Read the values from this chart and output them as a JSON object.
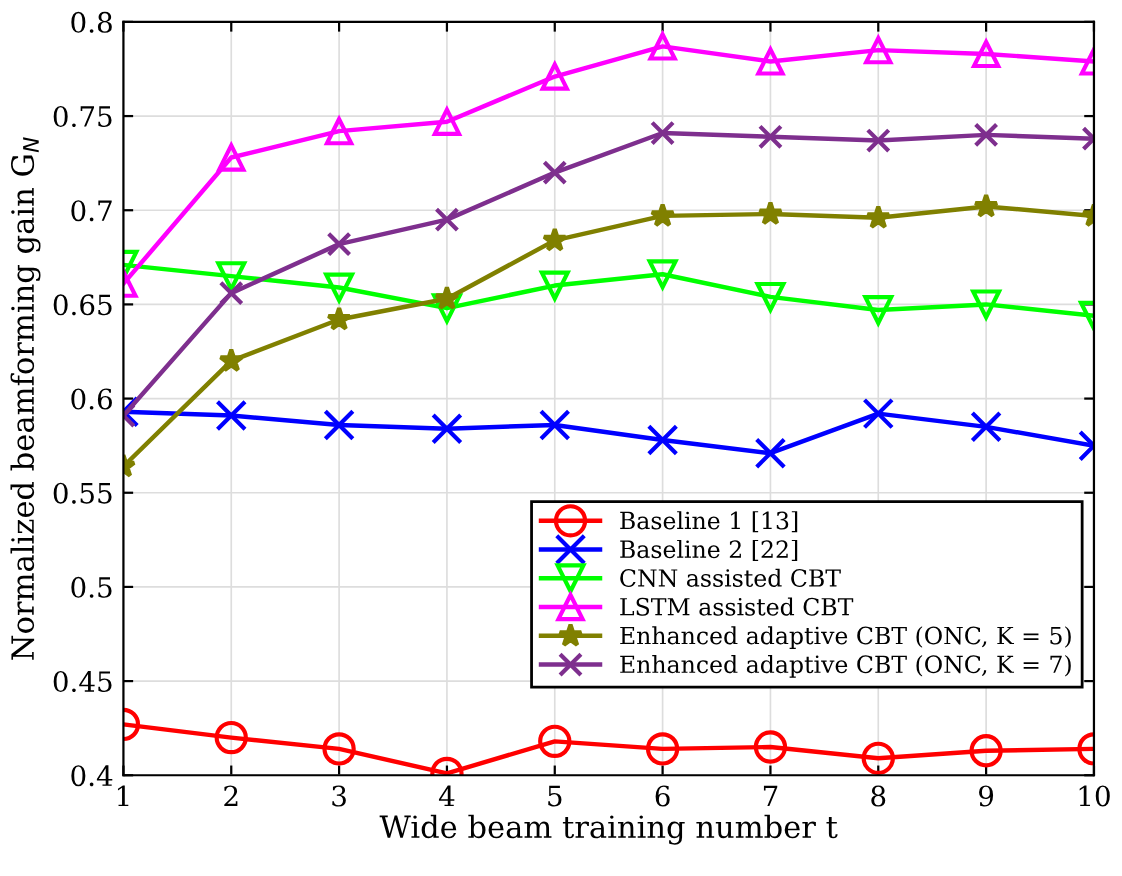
{
  "chart_data": {
    "type": "line",
    "xlabel": "Wide beam training number t",
    "ylabel": "Normalized beamforming gain G$_{N}$",
    "x": [
      1,
      2,
      3,
      4,
      5,
      6,
      7,
      8,
      9,
      10
    ],
    "xlim": [
      1,
      10
    ],
    "xticks": [
      1,
      2,
      3,
      4,
      5,
      6,
      7,
      8,
      9,
      10
    ],
    "ylim": [
      0.4,
      0.8
    ],
    "yticks": [
      0.4,
      0.45,
      0.5,
      0.55,
      0.6,
      0.65,
      0.7,
      0.75,
      0.8
    ],
    "grid": true,
    "legend": "right",
    "series": [
      {
        "name": "Baseline 1 [13]",
        "color": "#ff0000",
        "marker": "circle",
        "values": [
          0.427,
          0.42,
          0.414,
          0.401,
          0.418,
          0.414,
          0.415,
          0.409,
          0.413,
          0.414
        ]
      },
      {
        "name": "Baseline 2 [22]",
        "color": "#0000ff",
        "marker": "cross",
        "values": [
          0.593,
          0.591,
          0.586,
          0.584,
          0.586,
          0.578,
          0.571,
          0.592,
          0.585,
          0.575
        ]
      },
      {
        "name": "CNN assisted CBT",
        "color": "#00ff00",
        "marker": "triangle_down",
        "values": [
          0.671,
          0.665,
          0.659,
          0.648,
          0.66,
          0.666,
          0.654,
          0.647,
          0.65,
          0.644
        ]
      },
      {
        "name": "LSTM assisted CBT",
        "color": "#ff00ff",
        "marker": "triangle",
        "values": [
          0.661,
          0.728,
          0.742,
          0.747,
          0.771,
          0.787,
          0.779,
          0.785,
          0.783,
          0.779
        ]
      },
      {
        "name": "Enhanced adaptive CBT (ONC, K = 5)",
        "color": "#808000",
        "marker": "star",
        "values": [
          0.564,
          0.62,
          0.642,
          0.653,
          0.684,
          0.697,
          0.698,
          0.696,
          0.702,
          0.697
        ]
      },
      {
        "name": "Enhanced adaptive CBT (ONC, K = 7)",
        "color": "#7e2f8e",
        "marker": "cross",
        "values": [
          0.591,
          0.656,
          0.682,
          0.695,
          0.72,
          0.741,
          0.739,
          0.737,
          0.74,
          0.738
        ]
      }
    ]
  }
}
